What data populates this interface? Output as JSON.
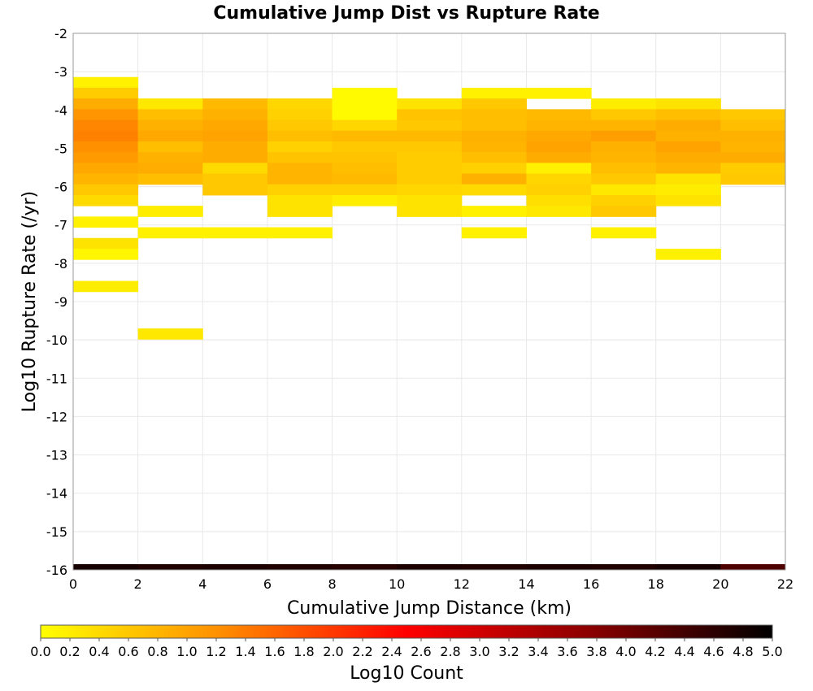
{
  "chart_data": {
    "type": "heatmap",
    "title": "Cumulative Jump Dist vs Rupture Rate",
    "xlabel": "Cumulative Jump Distance (km)",
    "ylabel": "Log10 Rupture Rate (/yr)",
    "xlim": [
      0,
      22
    ],
    "ylim": [
      -16,
      -2
    ],
    "xticks": [
      0,
      2,
      4,
      6,
      8,
      10,
      12,
      14,
      16,
      18,
      20,
      22
    ],
    "yticks": [
      -2,
      -3,
      -4,
      -5,
      -6,
      -7,
      -8,
      -9,
      -10,
      -11,
      -12,
      -13,
      -14,
      -15,
      -16
    ],
    "grid": true,
    "x_bin_width": 2,
    "y_bin_height": 0.28,
    "colorbar": {
      "label": "Log10 Count",
      "range": [
        0,
        5
      ],
      "ticks": [
        "0.0",
        "0.2",
        "0.4",
        "0.6",
        "0.8",
        "1.0",
        "1.2",
        "1.4",
        "1.6",
        "1.8",
        "2.0",
        "2.2",
        "2.4",
        "2.6",
        "2.8",
        "3.0",
        "3.2",
        "3.4",
        "3.6",
        "3.8",
        "4.0",
        "4.2",
        "4.4",
        "4.6",
        "4.8",
        "5.0"
      ],
      "stops": [
        "#ffff00",
        "#ff8c00",
        "#ff0000",
        "#8b0000",
        "#000000"
      ]
    },
    "columns": [
      {
        "x": 0,
        "cells": [
          [
            -3.14,
            0.15
          ],
          [
            -3.42,
            0.55
          ],
          [
            -3.7,
            0.9
          ],
          [
            -3.98,
            1.15
          ],
          [
            -4.26,
            1.3
          ],
          [
            -4.54,
            1.35
          ],
          [
            -4.82,
            1.2
          ],
          [
            -5.1,
            1.1
          ],
          [
            -5.38,
            0.95
          ],
          [
            -5.66,
            0.8
          ],
          [
            -5.94,
            0.6
          ],
          [
            -6.22,
            0.4
          ],
          [
            -6.78,
            0.15
          ],
          [
            -7.34,
            0.3
          ],
          [
            -7.62,
            0.1
          ],
          [
            -8.46,
            0.2
          ]
        ]
      },
      {
        "x": 2,
        "cells": [
          [
            -3.7,
            0.25
          ],
          [
            -3.98,
            0.7
          ],
          [
            -4.26,
            0.85
          ],
          [
            -4.54,
            0.95
          ],
          [
            -4.82,
            0.7
          ],
          [
            -5.1,
            0.85
          ],
          [
            -5.38,
            0.9
          ],
          [
            -5.66,
            0.7
          ],
          [
            -6.5,
            0.2
          ],
          [
            -7.06,
            0.15
          ],
          [
            -9.7,
            0.25
          ]
        ]
      },
      {
        "x": 4,
        "cells": [
          [
            -3.7,
            0.75
          ],
          [
            -3.98,
            0.85
          ],
          [
            -4.26,
            0.95
          ],
          [
            -4.54,
            1.0
          ],
          [
            -4.82,
            0.9
          ],
          [
            -5.1,
            0.9
          ],
          [
            -5.38,
            0.4
          ],
          [
            -5.66,
            0.6
          ],
          [
            -5.94,
            0.6
          ],
          [
            -7.06,
            0.15
          ]
        ]
      },
      {
        "x": 6,
        "cells": [
          [
            -3.7,
            0.45
          ],
          [
            -3.98,
            0.5
          ],
          [
            -4.26,
            0.6
          ],
          [
            -4.54,
            0.7
          ],
          [
            -4.82,
            0.5
          ],
          [
            -5.1,
            0.65
          ],
          [
            -5.38,
            0.8
          ],
          [
            -5.66,
            0.8
          ],
          [
            -5.94,
            0.5
          ],
          [
            -6.22,
            0.3
          ],
          [
            -6.5,
            0.3
          ],
          [
            -7.06,
            0.15
          ]
        ]
      },
      {
        "x": 8,
        "cells": [
          [
            -3.42,
            0.05
          ],
          [
            -3.7,
            0.05
          ],
          [
            -3.98,
            0.05
          ],
          [
            -4.26,
            0.45
          ],
          [
            -4.54,
            0.75
          ],
          [
            -4.82,
            0.6
          ],
          [
            -5.1,
            0.65
          ],
          [
            -5.38,
            0.7
          ],
          [
            -5.66,
            0.75
          ],
          [
            -5.94,
            0.5
          ],
          [
            -6.22,
            0.2
          ]
        ]
      },
      {
        "x": 10,
        "cells": [
          [
            -3.7,
            0.3
          ],
          [
            -3.98,
            0.65
          ],
          [
            -4.26,
            0.6
          ],
          [
            -4.54,
            0.75
          ],
          [
            -4.82,
            0.6
          ],
          [
            -5.1,
            0.55
          ],
          [
            -5.38,
            0.55
          ],
          [
            -5.66,
            0.55
          ],
          [
            -5.94,
            0.45
          ],
          [
            -6.22,
            0.3
          ],
          [
            -6.5,
            0.3
          ]
        ]
      },
      {
        "x": 12,
        "cells": [
          [
            -3.42,
            0.15
          ],
          [
            -3.7,
            0.6
          ],
          [
            -3.98,
            0.7
          ],
          [
            -4.26,
            0.7
          ],
          [
            -4.54,
            0.85
          ],
          [
            -4.82,
            0.8
          ],
          [
            -5.1,
            0.7
          ],
          [
            -5.38,
            0.5
          ],
          [
            -5.66,
            0.85
          ],
          [
            -5.94,
            0.4
          ],
          [
            -6.5,
            0.15
          ],
          [
            -7.06,
            0.15
          ]
        ]
      },
      {
        "x": 14,
        "cells": [
          [
            -3.42,
            0.15
          ],
          [
            -3.98,
            0.75
          ],
          [
            -4.26,
            0.8
          ],
          [
            -4.54,
            0.95
          ],
          [
            -4.82,
            1.0
          ],
          [
            -5.1,
            0.9
          ],
          [
            -5.38,
            0.15
          ],
          [
            -5.66,
            0.45
          ],
          [
            -5.94,
            0.5
          ],
          [
            -6.22,
            0.35
          ],
          [
            -6.5,
            0.25
          ]
        ]
      },
      {
        "x": 16,
        "cells": [
          [
            -3.7,
            0.2
          ],
          [
            -3.98,
            0.6
          ],
          [
            -4.26,
            0.8
          ],
          [
            -4.54,
            1.05
          ],
          [
            -4.82,
            0.85
          ],
          [
            -5.1,
            0.8
          ],
          [
            -5.38,
            0.7
          ],
          [
            -5.66,
            0.6
          ],
          [
            -5.94,
            0.25
          ],
          [
            -6.22,
            0.5
          ],
          [
            -6.5,
            0.6
          ],
          [
            -7.06,
            0.15
          ]
        ]
      },
      {
        "x": 18,
        "cells": [
          [
            -3.7,
            0.3
          ],
          [
            -3.98,
            0.7
          ],
          [
            -4.26,
            0.9
          ],
          [
            -4.54,
            0.85
          ],
          [
            -4.82,
            1.0
          ],
          [
            -5.1,
            0.9
          ],
          [
            -5.38,
            0.8
          ],
          [
            -5.66,
            0.3
          ],
          [
            -5.94,
            0.2
          ],
          [
            -6.22,
            0.3
          ],
          [
            -7.62,
            0.15
          ]
        ]
      },
      {
        "x": 20,
        "cells": [
          [
            -3.98,
            0.6
          ],
          [
            -4.26,
            0.7
          ],
          [
            -4.54,
            0.85
          ],
          [
            -4.82,
            0.8
          ],
          [
            -5.1,
            0.9
          ],
          [
            -5.38,
            0.55
          ],
          [
            -5.66,
            0.6
          ]
        ]
      }
    ],
    "bottom_band": {
      "y": -16,
      "segments": [
        [
          0,
          2,
          4.8
        ],
        [
          2,
          4,
          4.7
        ],
        [
          4,
          6,
          4.75
        ],
        [
          6,
          8,
          4.7
        ],
        [
          8,
          10,
          4.65
        ],
        [
          10,
          12,
          4.75
        ],
        [
          12,
          14,
          4.7
        ],
        [
          14,
          16,
          4.75
        ],
        [
          16,
          18,
          4.7
        ],
        [
          18,
          20,
          4.8
        ],
        [
          20,
          22,
          4.3
        ]
      ]
    }
  }
}
